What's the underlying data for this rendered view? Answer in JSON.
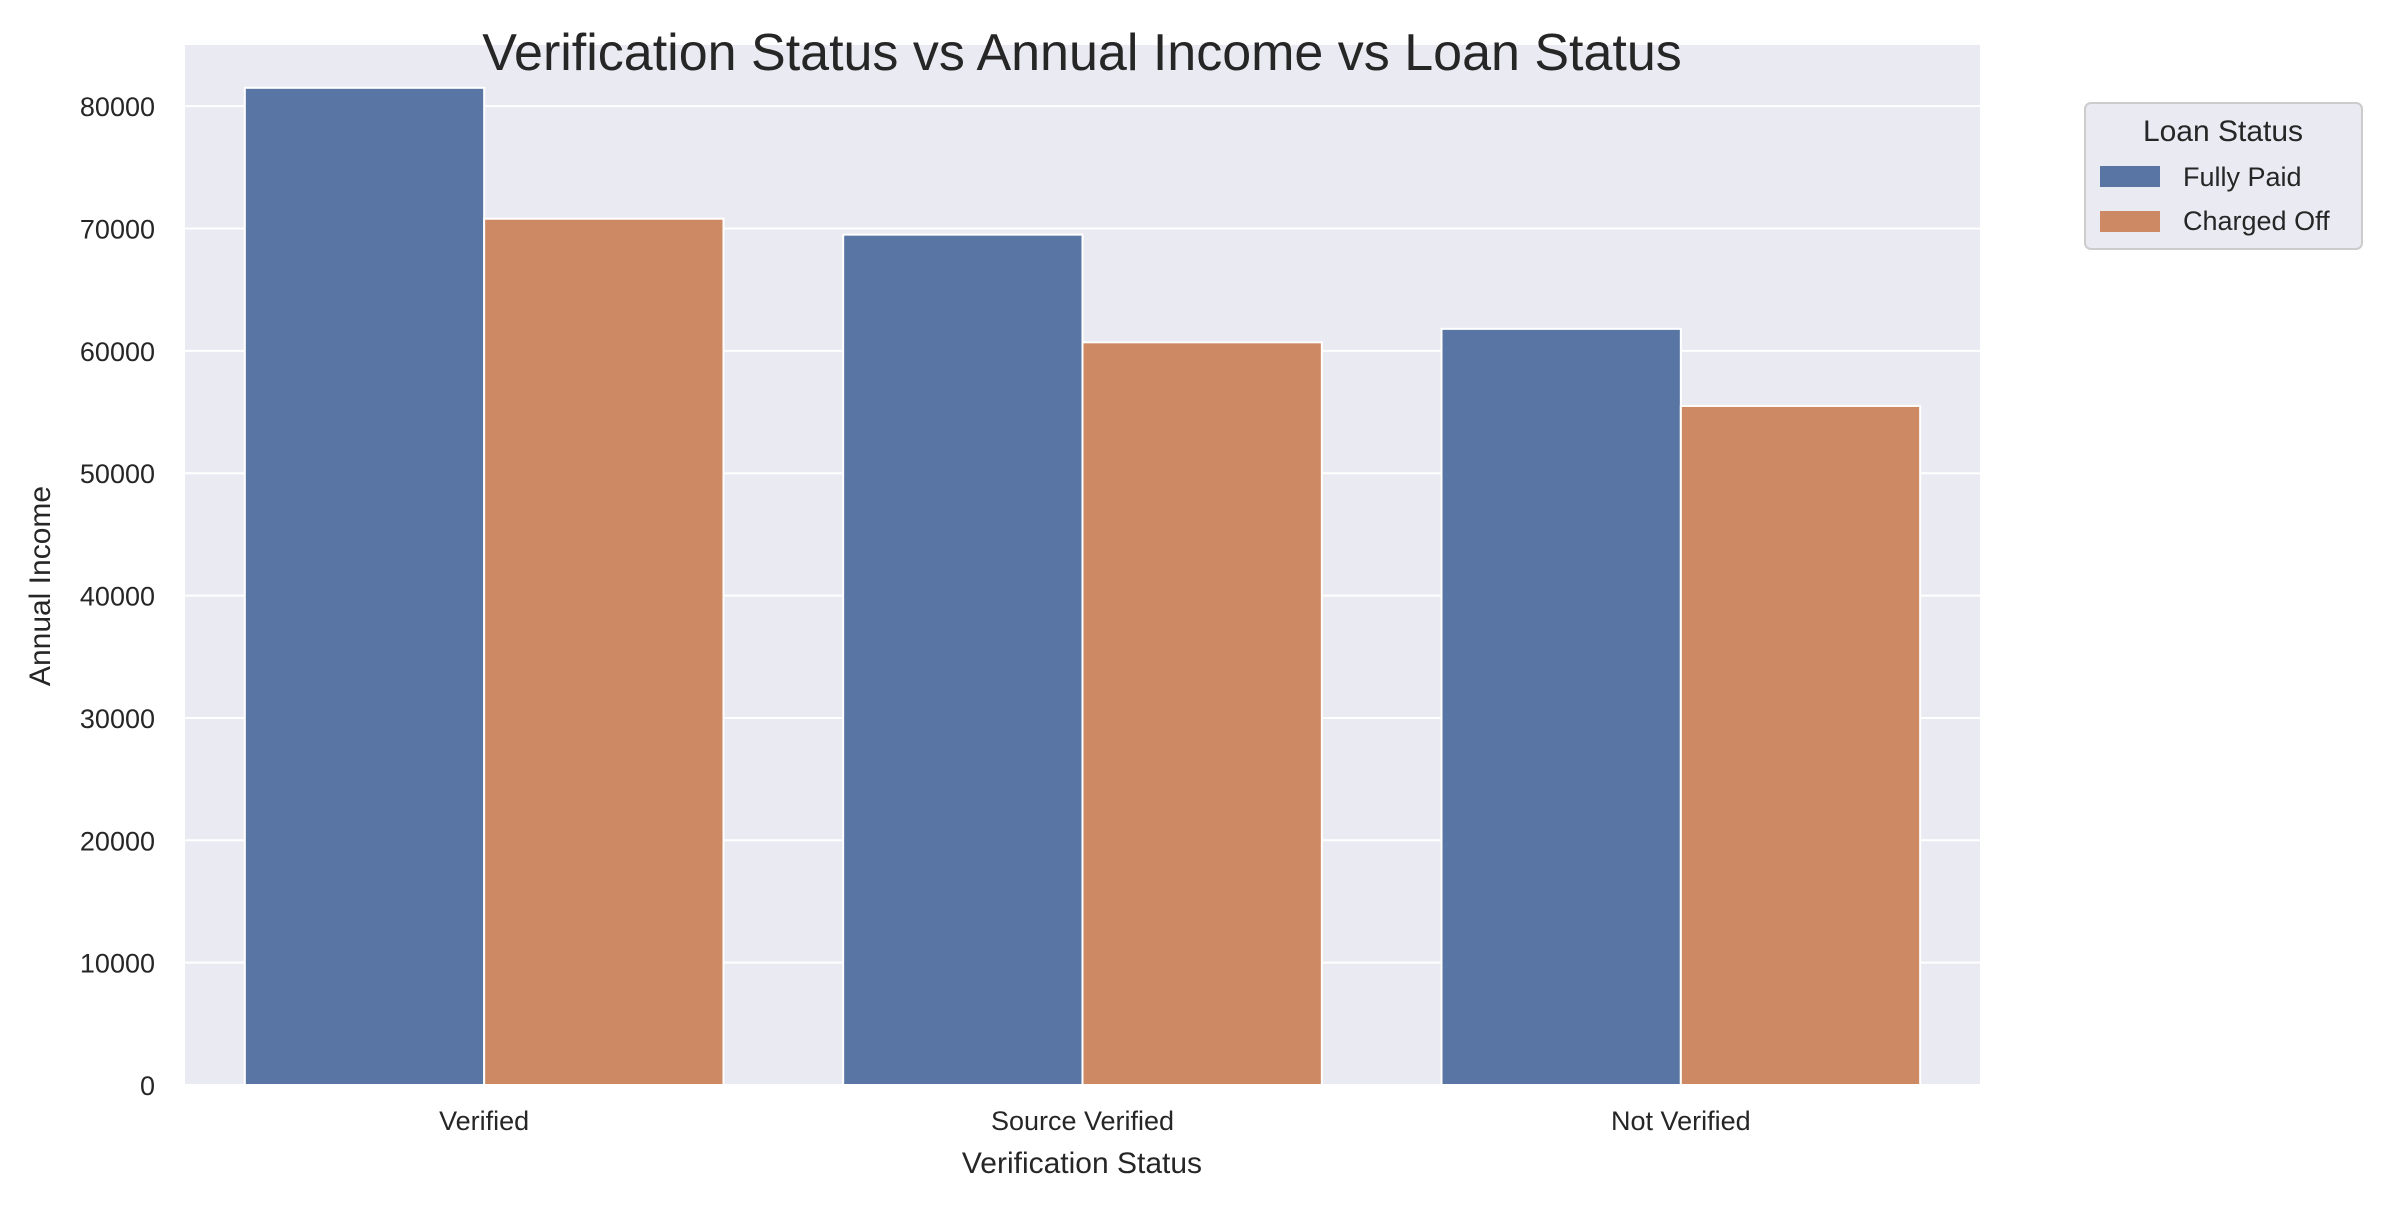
{
  "chart_data": {
    "type": "bar",
    "title": "Verification Status vs Annual Income vs Loan Status",
    "xlabel": "Verification Status",
    "ylabel": "Annual Income",
    "categories": [
      "Verified",
      "Source Verified",
      "Not Verified"
    ],
    "series": [
      {
        "name": "Fully Paid",
        "values": [
          81500,
          69500,
          61800
        ],
        "color": "#5975a4"
      },
      {
        "name": "Charged Off",
        "values": [
          70800,
          60700,
          55500
        ],
        "color": "#cc8963"
      }
    ],
    "ylim": [
      0,
      85000
    ],
    "yticks": [
      0,
      10000,
      20000,
      30000,
      40000,
      50000,
      60000,
      70000,
      80000
    ],
    "grid": true,
    "legend": {
      "title": "Loan Status",
      "placement": "outside top-right"
    },
    "background": "#eaeaf2"
  }
}
